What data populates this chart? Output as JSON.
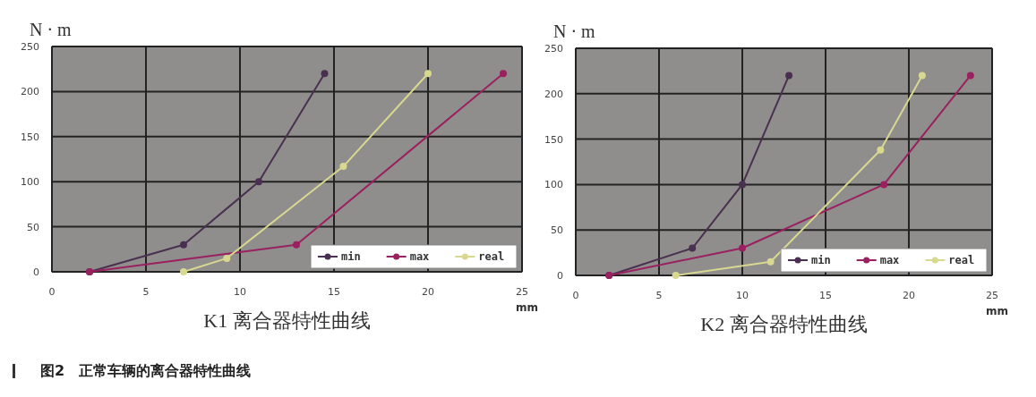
{
  "chart_data": [
    {
      "type": "line",
      "title": "K1 离合器特性曲线",
      "xlabel": "mm",
      "ylabel": "N · m",
      "xlim": [
        0,
        25
      ],
      "xticks": [
        0,
        5,
        10,
        15,
        20,
        25
      ],
      "ylim": [
        0,
        250
      ],
      "yticks": [
        0,
        50,
        100,
        150,
        200,
        250
      ],
      "grid": true,
      "legend": "bottom right",
      "marker": "circle",
      "line_style": "solid",
      "annotations": [
        "图2　正常车辆的离合器特性曲线"
      ],
      "series": [
        {
          "name": "min",
          "color": "#4a3050",
          "x": [
            2,
            7,
            11,
            14.5
          ],
          "values": [
            0,
            30,
            100,
            220
          ]
        },
        {
          "name": "max",
          "color": "#9a2060",
          "x": [
            2,
            13,
            24
          ],
          "values": [
            0,
            30,
            220
          ]
        },
        {
          "name": "real",
          "color": "#d8d890",
          "x": [
            7,
            9.3,
            15.5,
            20
          ],
          "values": [
            0,
            15,
            117,
            220
          ]
        }
      ]
    },
    {
      "type": "line",
      "title": "K2 离合器特性曲线",
      "xlabel": "mm",
      "ylabel": "N · m",
      "xlim": [
        0,
        25
      ],
      "xticks": [
        0,
        5,
        10,
        15,
        20,
        25
      ],
      "ylim": [
        0,
        250
      ],
      "yticks": [
        0,
        50,
        100,
        150,
        200,
        250
      ],
      "grid": true,
      "legend": "bottom right",
      "marker": "circle",
      "line_style": "solid",
      "series": [
        {
          "name": "min",
          "color": "#4a3050",
          "x": [
            2,
            7,
            10,
            12.8
          ],
          "values": [
            0,
            30,
            100,
            220
          ]
        },
        {
          "name": "max",
          "color": "#9a2060",
          "x": [
            2,
            10,
            18.5,
            23.7
          ],
          "values": [
            0,
            30,
            100,
            220
          ]
        },
        {
          "name": "real",
          "color": "#d8d890",
          "x": [
            6,
            11.7,
            18.3,
            20.8
          ],
          "values": [
            0,
            15,
            138,
            220
          ]
        }
      ]
    }
  ]
}
